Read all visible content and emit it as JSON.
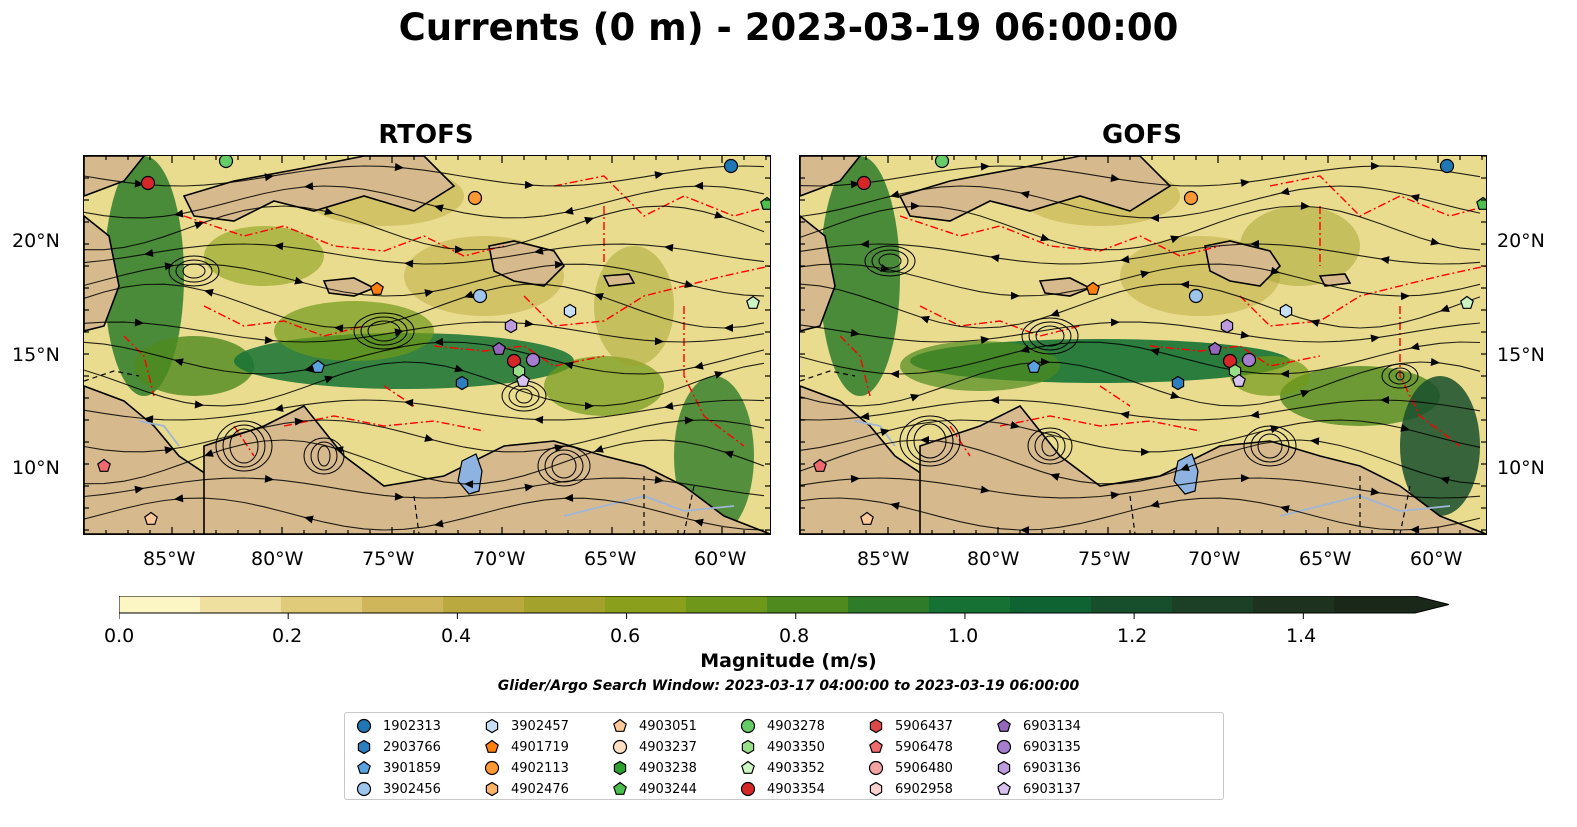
{
  "title": "Currents (0 m) - 2023-03-19 06:00:00",
  "panels": [
    {
      "title": "RTOFS"
    },
    {
      "title": "GOFS"
    }
  ],
  "axes": {
    "x_ticks": [
      "85°W",
      "80°W",
      "75°W",
      "70°W",
      "65°W",
      "60°W"
    ],
    "y_ticks": [
      "20°N",
      "15°N",
      "10°N"
    ]
  },
  "colorbar": {
    "label": "Magnitude (m/s)",
    "ticks": [
      "0.0",
      "0.2",
      "0.4",
      "0.6",
      "0.8",
      "1.0",
      "1.2",
      "1.4"
    ],
    "colors": [
      "#fcf5c4",
      "#efe0a0",
      "#e0cb7a",
      "#cfb65a",
      "#b9a93f",
      "#a2a22c",
      "#8aa01c",
      "#6f981a",
      "#4f8a1f",
      "#2e7c2a",
      "#157234",
      "#0f6232",
      "#174f2c",
      "#1b4026",
      "#1d3320",
      "#1a281a"
    ]
  },
  "search_window": "Glider/Argo Search Window: 2023-03-17 04:00:00 to 2023-03-19 06:00:00",
  "legend": [
    {
      "id": "1902313",
      "marker": "circle",
      "color": "#1f77b4"
    },
    {
      "id": "2903766",
      "marker": "hexagon",
      "color": "#2b7fc1"
    },
    {
      "id": "3901859",
      "marker": "pentagon",
      "color": "#5aa3e0"
    },
    {
      "id": "3902456",
      "marker": "circle",
      "color": "#9ec6ec"
    },
    {
      "id": "3902457",
      "marker": "hexagon",
      "color": "#c6dff5"
    },
    {
      "id": "4901719",
      "marker": "pentagon",
      "color": "#ff7f0e"
    },
    {
      "id": "4902113",
      "marker": "circle",
      "color": "#ff9933"
    },
    {
      "id": "4902476",
      "marker": "hexagon",
      "color": "#ffb366"
    },
    {
      "id": "4903051",
      "marker": "pentagon",
      "color": "#ffc899"
    },
    {
      "id": "4903237",
      "marker": "circle",
      "color": "#ffe0c2"
    },
    {
      "id": "4903238",
      "marker": "hexagon",
      "color": "#2ca02c"
    },
    {
      "id": "4903244",
      "marker": "pentagon",
      "color": "#4cbf4c"
    },
    {
      "id": "4903278",
      "marker": "circle",
      "color": "#66cc66"
    },
    {
      "id": "4903350",
      "marker": "hexagon",
      "color": "#98df8a"
    },
    {
      "id": "4903352",
      "marker": "pentagon",
      "color": "#ccf5c4"
    },
    {
      "id": "4903354",
      "marker": "circle",
      "color": "#d62728"
    },
    {
      "id": "5906437",
      "marker": "hexagon",
      "color": "#e0474a"
    },
    {
      "id": "5906478",
      "marker": "pentagon",
      "color": "#ee6a6e"
    },
    {
      "id": "5906480",
      "marker": "circle",
      "color": "#f4a3a3"
    },
    {
      "id": "6902958",
      "marker": "hexagon",
      "color": "#fbd0d0"
    },
    {
      "id": "6903134",
      "marker": "pentagon",
      "color": "#9467bd"
    },
    {
      "id": "6903135",
      "marker": "circle",
      "color": "#a67ed0"
    },
    {
      "id": "6903136",
      "marker": "hexagon",
      "color": "#bd9be0"
    },
    {
      "id": "6903137",
      "marker": "pentagon",
      "color": "#d8c2f0"
    }
  ],
  "colors": {
    "land": "#d6b98c",
    "lake": "#8fb3e0",
    "eez_line": "#ff0000",
    "streamline": "#000000"
  }
}
